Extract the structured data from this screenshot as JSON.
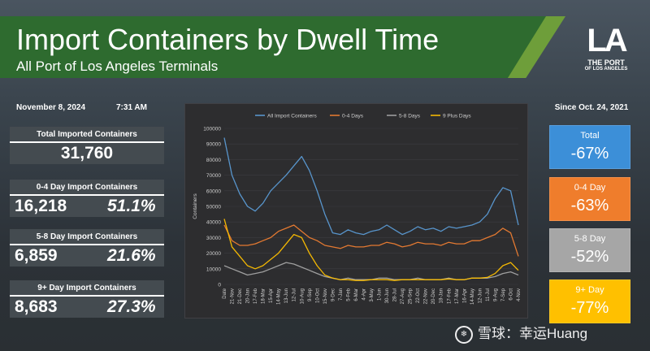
{
  "header": {
    "title": "Import Containers by Dwell Time",
    "subtitle": "All Port of Los Angeles Terminals"
  },
  "logo": {
    "mark": "LA",
    "line1": "THE PORT",
    "line2": "OF LOS ANGELES"
  },
  "left_panel": {
    "date": "November 8, 2024",
    "time": "7:31 AM",
    "stats": [
      {
        "label": "Total Imported Containers",
        "value": "31,760",
        "percent": ""
      },
      {
        "label": "0-4 Day Import Containers",
        "value": "16,218",
        "percent": "51.1%"
      },
      {
        "label": "5-8 Day Import Containers",
        "value": "6,859",
        "percent": "21.6%"
      },
      {
        "label": "9+ Day Import Containers",
        "value": "8,683",
        "percent": "27.3%"
      }
    ]
  },
  "right_panel": {
    "since": "Since Oct. 24, 2021",
    "kpis": [
      {
        "label": "Total",
        "value": "-67%",
        "color": "#3c8fd8"
      },
      {
        "label": "0-4 Day",
        "value": "-63%",
        "color": "#ef7d2c"
      },
      {
        "label": "5-8 Day",
        "value": "-52%",
        "color": "#a6a6a6"
      },
      {
        "label": "9+ Day",
        "value": "-77%",
        "color": "#ffc000"
      }
    ]
  },
  "watermark": {
    "text": "雪球：幸运Huang"
  },
  "chart_data": {
    "type": "line",
    "ylabel": "Containers",
    "ylim": [
      0,
      100000
    ],
    "yticks": [
      0,
      10000,
      20000,
      30000,
      40000,
      50000,
      60000,
      70000,
      80000,
      90000,
      100000
    ],
    "legend_position": "top",
    "x_tick_labels": [
      "Date",
      "21-Nov",
      "21-Dec",
      "20-Jan",
      "17-Feb",
      "18-Mar",
      "15-Apr",
      "14-May",
      "13-Jun",
      "12-Jul",
      "10-Aug",
      "9-Sep",
      "10-Oct",
      "15-Nov",
      "9-Dec",
      "7-Jan",
      "5-Feb",
      "6-Mar",
      "4-Apr",
      "3-May",
      "1-Jun",
      "30-Jun",
      "28-Jul",
      "27-Aug",
      "25-Sep",
      "22-Oct",
      "22-Nov",
      "20-Dec",
      "18-Jan",
      "17-Feb",
      "17-Mar",
      "16-Apr",
      "14-May",
      "12-Jun",
      "11-Jul",
      "9-Aug",
      "7-Sep",
      "6-Oct",
      "4-Nov"
    ],
    "series": [
      {
        "name": "All Import Containers",
        "color": "#5b9bd5",
        "values": [
          94000,
          70000,
          58000,
          50000,
          47000,
          52000,
          60000,
          65000,
          70000,
          76000,
          82000,
          73000,
          60000,
          45000,
          33000,
          32000,
          35000,
          33000,
          32000,
          34000,
          35000,
          38000,
          35000,
          32000,
          34000,
          37000,
          35000,
          36000,
          34000,
          37000,
          36000,
          37000,
          38000,
          40000,
          45000,
          55000,
          62000,
          60000,
          38000
        ]
      },
      {
        "name": "0-4 Days",
        "color": "#ed7d31",
        "values": [
          38000,
          28000,
          25000,
          25000,
          26000,
          28000,
          30000,
          34000,
          36000,
          38000,
          34000,
          30000,
          28000,
          25000,
          24000,
          23000,
          25000,
          24000,
          24000,
          25000,
          25000,
          27000,
          26000,
          24000,
          25000,
          27000,
          26000,
          26000,
          25000,
          27000,
          26000,
          26000,
          28000,
          28000,
          30000,
          32000,
          36000,
          33000,
          18000
        ]
      },
      {
        "name": "5-8 Days",
        "color": "#a5a5a5",
        "values": [
          12000,
          10000,
          8000,
          6000,
          7000,
          8000,
          10000,
          12000,
          14000,
          13000,
          11000,
          9000,
          7000,
          5000,
          4000,
          3000,
          4000,
          3000,
          3000,
          3000,
          4000,
          4000,
          3000,
          3000,
          3000,
          4000,
          3000,
          3000,
          3000,
          4000,
          3000,
          3000,
          4000,
          4000,
          4000,
          5000,
          7000,
          8000,
          6000
        ]
      },
      {
        "name": "9 Plus Days",
        "color": "#ffc000",
        "values": [
          42000,
          24000,
          18000,
          12000,
          10000,
          12000,
          16000,
          20000,
          26000,
          32000,
          30000,
          20000,
          12000,
          6000,
          4000,
          3000,
          3000,
          2500,
          2500,
          3000,
          3000,
          3000,
          2500,
          3000,
          3000,
          3000,
          3000,
          3000,
          3000,
          3500,
          3000,
          3000,
          4000,
          4000,
          4500,
          7000,
          12000,
          14000,
          9000
        ]
      }
    ]
  }
}
